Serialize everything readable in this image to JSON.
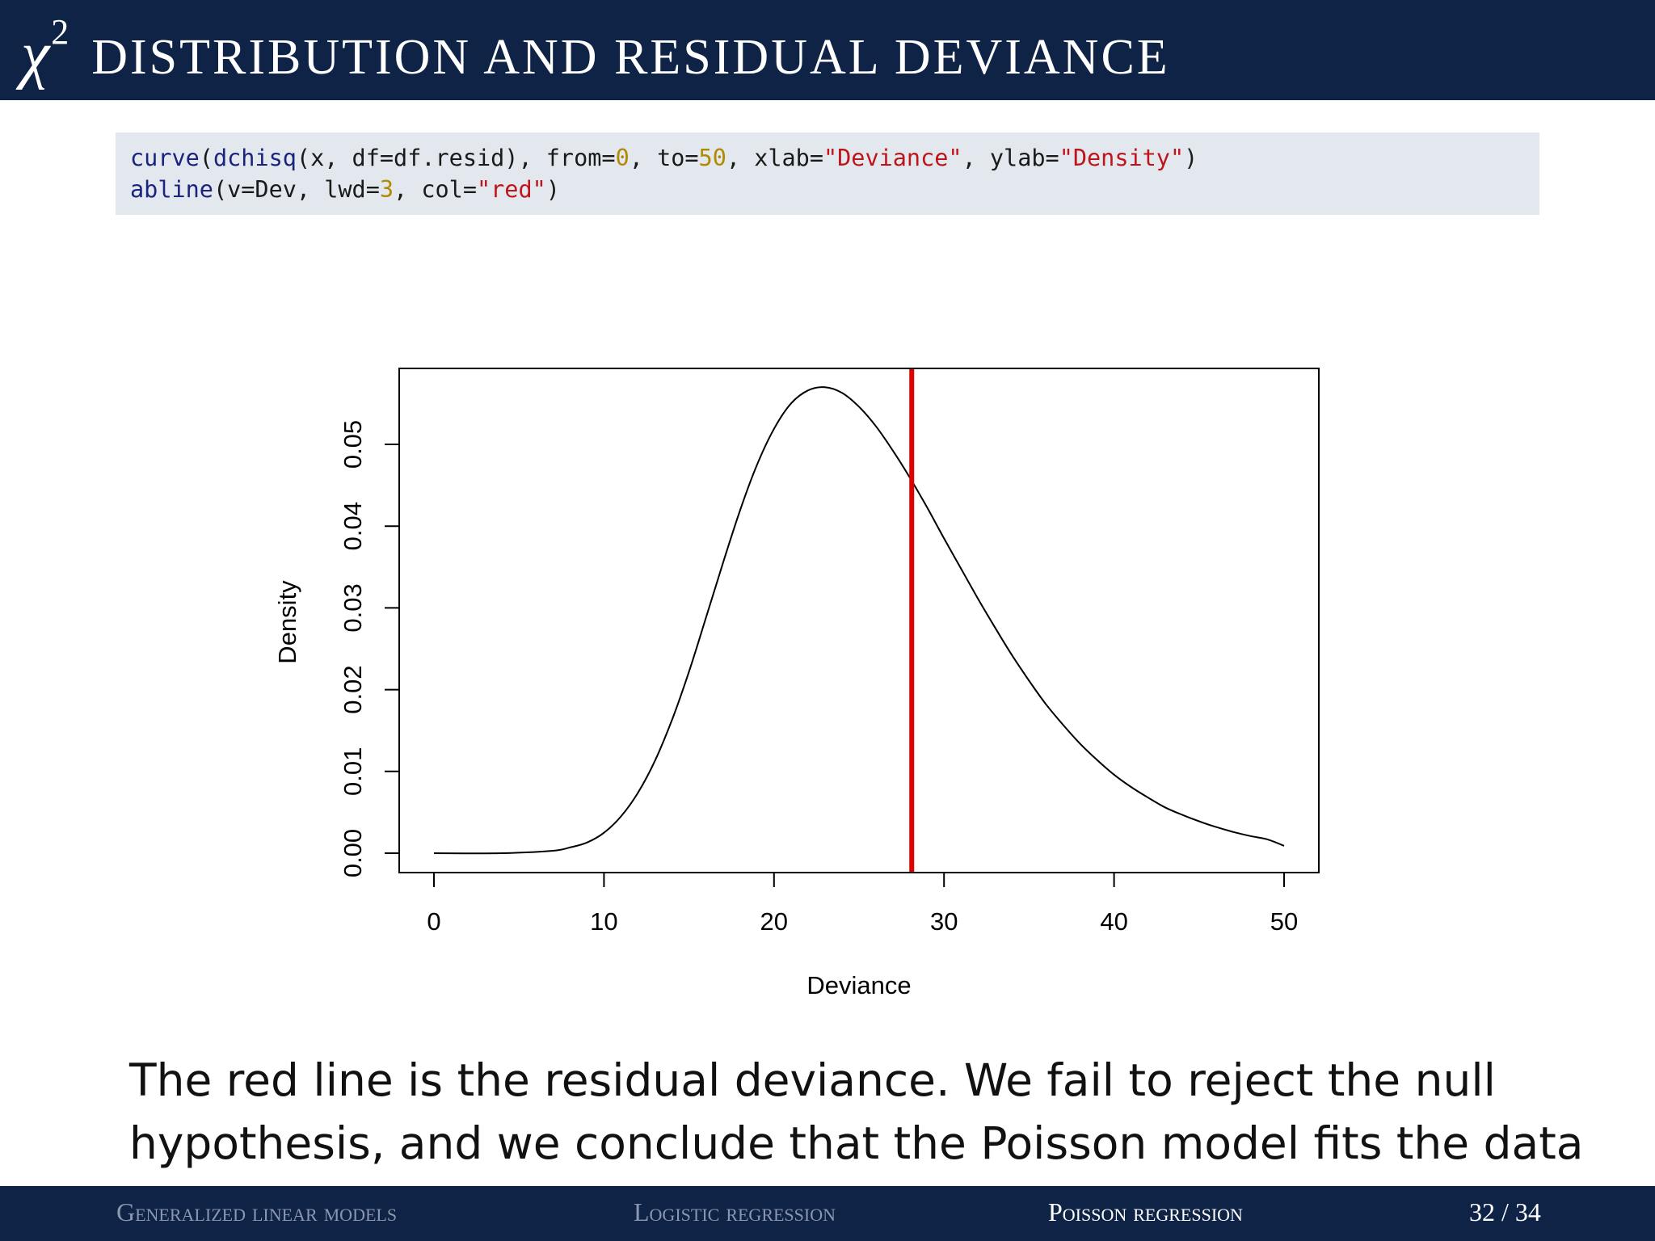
{
  "title": {
    "symbol": "χ",
    "superscript": "2",
    "text": "DISTRIBUTION AND RESIDUAL DEVIANCE"
  },
  "code": {
    "line1": {
      "fn1": "curve",
      "p1": "(",
      "fn2": "dchisq",
      "p2": "(x, df=df.resid), from=",
      "n1": "0",
      "p3": ", to=",
      "n2": "50",
      "p4": ", xlab=",
      "s1": "\"Deviance\"",
      "p5": ", ylab=",
      "s2": "\"Density\"",
      "p6": ")"
    },
    "line2": {
      "fn1": "abline",
      "p1": "(v=Dev, lwd=",
      "n1": "3",
      "p2": ", col=",
      "s1": "\"red\"",
      "p3": ")"
    }
  },
  "chart_data": {
    "type": "line",
    "title": "",
    "xlabel": "Deviance",
    "ylabel": "Density",
    "xlim": [
      0,
      50
    ],
    "ylim": [
      0,
      0.057
    ],
    "x_ticks": [
      "0",
      "10",
      "20",
      "30",
      "40",
      "50"
    ],
    "y_ticks": [
      "0.00",
      "0.01",
      "0.02",
      "0.03",
      "0.04",
      "0.05"
    ],
    "grid": false,
    "legend": "none",
    "series": [
      {
        "color": "#000000",
        "x": [
          0,
          4,
          7,
          8,
          9,
          10,
          11,
          12,
          13,
          14,
          15,
          16,
          17,
          18,
          19,
          20,
          21,
          22,
          23,
          24,
          25,
          26,
          27,
          28,
          29,
          30,
          31,
          32,
          33,
          34,
          35,
          36,
          37,
          38,
          39,
          40,
          41,
          42,
          43,
          44,
          45,
          46,
          47,
          48,
          49,
          50
        ],
        "y": [
          0,
          0,
          0.0003,
          0.0007,
          0.0013,
          0.0025,
          0.0045,
          0.0074,
          0.0113,
          0.0163,
          0.0222,
          0.0288,
          0.0355,
          0.0419,
          0.0475,
          0.0519,
          0.055,
          0.0566,
          0.057,
          0.0563,
          0.0546,
          0.0522,
          0.0492,
          0.0459,
          0.0423,
          0.0385,
          0.0348,
          0.0311,
          0.0276,
          0.0242,
          0.0211,
          0.0182,
          0.0157,
          0.0134,
          0.0114,
          0.0096,
          0.0081,
          0.0068,
          0.0056,
          0.0047,
          0.0039,
          0.0032,
          0.0026,
          0.0021,
          0.0017,
          0.0009
        ]
      }
    ],
    "vline": {
      "x": 28.1,
      "color": "#e00000"
    }
  },
  "caption": {
    "line1": "The red line is the residual deviance.  We fail to reject the null",
    "line2": "hypothesis, and we conclude that the Poisson model fits the data"
  },
  "footer": {
    "section1": "Generalized linear models",
    "section2": "Logistic regression",
    "section3": "Poisson regression",
    "page": "32 / 34"
  }
}
